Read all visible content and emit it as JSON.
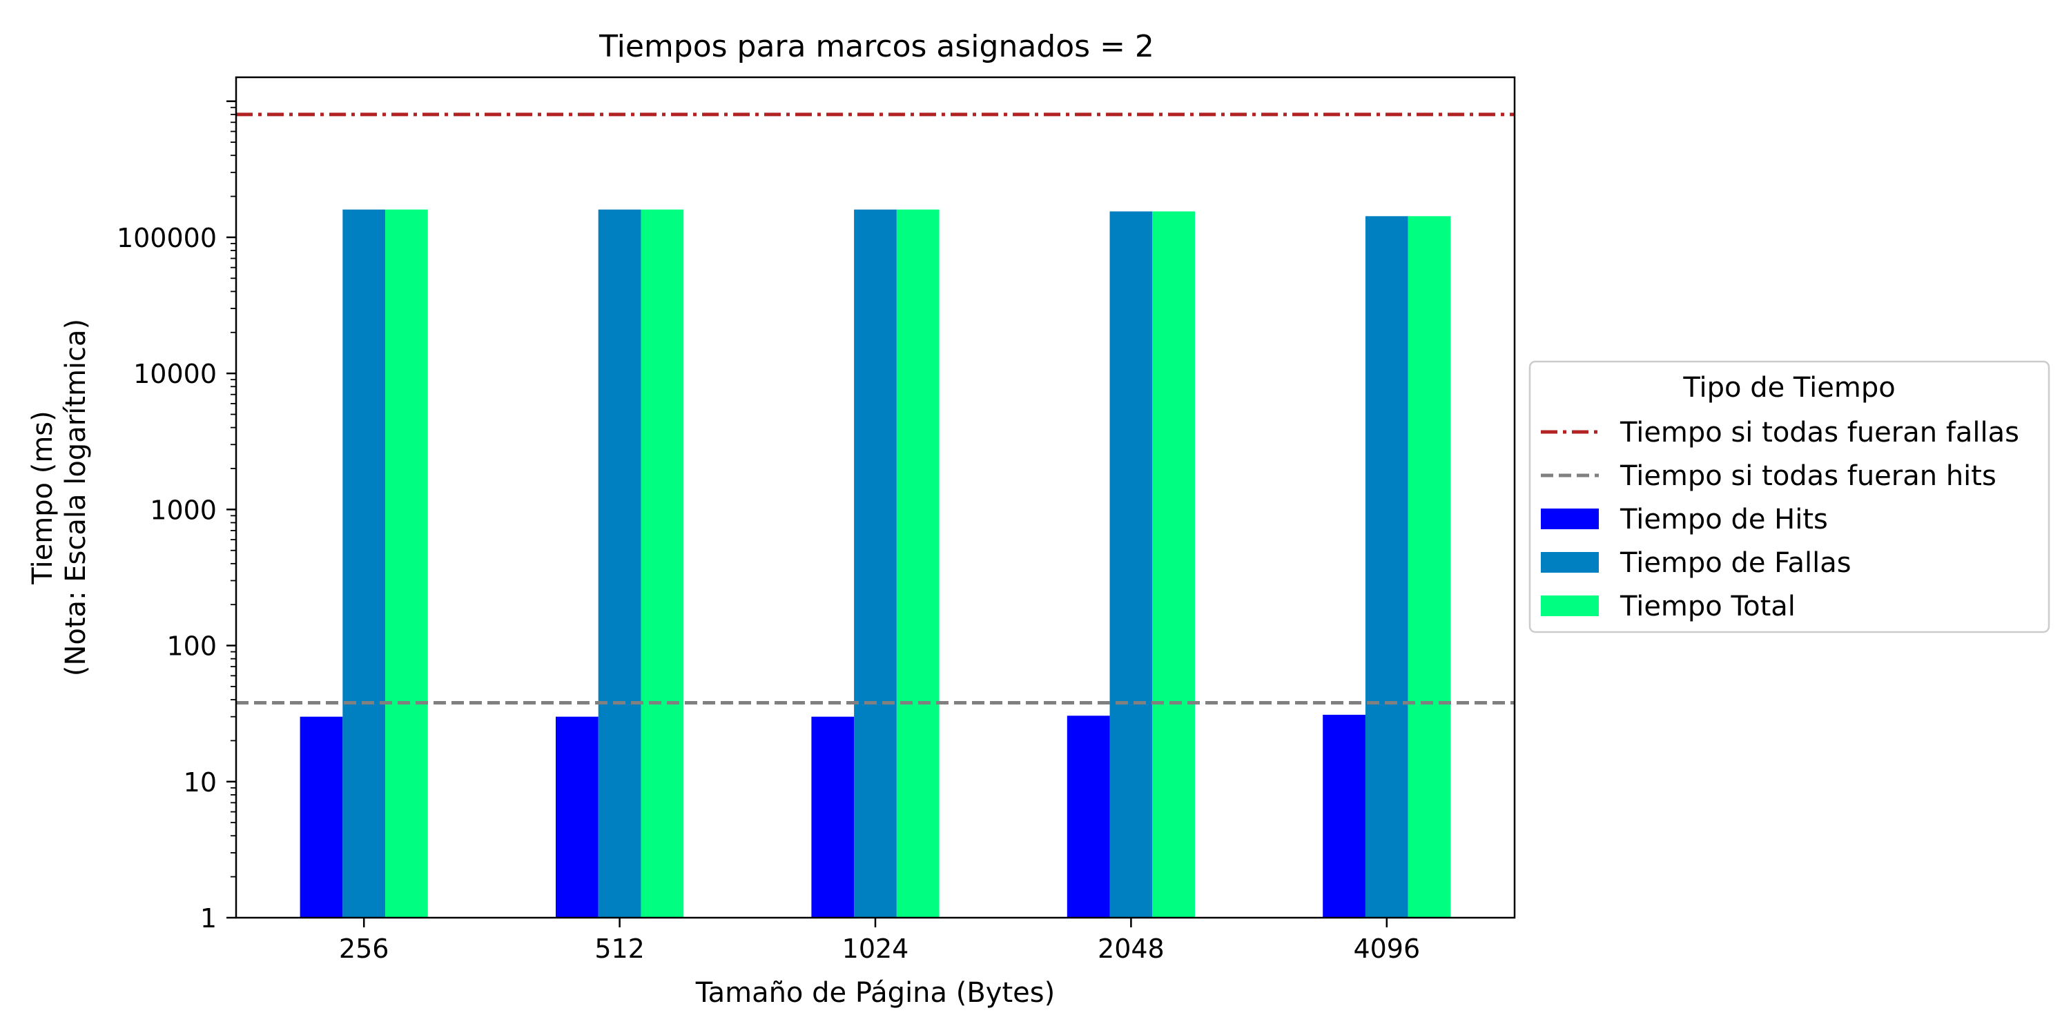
{
  "chart_data": {
    "type": "bar",
    "title": "Tiempos para marcos asignados = 2",
    "xlabel": "Tamaño de Página (Bytes)",
    "ylabel_line1": "Tiempo (ms)",
    "ylabel_line2": "(Nota: Escala logarítmica)",
    "yscale": "log",
    "ylim": [
      1,
      1500000
    ],
    "yticks": [
      {
        "value": 1,
        "label": "1"
      },
      {
        "value": 10,
        "label": "10"
      },
      {
        "value": 100,
        "label": "100"
      },
      {
        "value": 1000,
        "label": "1000"
      },
      {
        "value": 10000,
        "label": "10000"
      },
      {
        "value": 100000,
        "label": "100000"
      }
    ],
    "categories": [
      "256",
      "512",
      "1024",
      "2048",
      "4096"
    ],
    "series": [
      {
        "name": "Tiempo de Hits",
        "color": "#0000ff",
        "values": [
          30,
          30,
          30,
          30.5,
          31
        ]
      },
      {
        "name": "Tiempo de Fallas",
        "color": "#0080c0",
        "values": [
          160000,
          160000,
          160000,
          155000,
          143000
        ]
      },
      {
        "name": "Tiempo Total",
        "color": "#00ff80",
        "values": [
          160030,
          160030,
          160030,
          155030,
          143031
        ]
      }
    ],
    "reference_lines": [
      {
        "name": "Tiempo si todas fueran fallas",
        "value": 800000,
        "color": "#b22222",
        "style": "dashdot"
      },
      {
        "name": "Tiempo si todas fueran hits",
        "value": 38,
        "color": "#808080",
        "style": "dashed"
      }
    ],
    "legend": {
      "title": "Tipo de Tiempo",
      "position": "right"
    },
    "grid": false
  }
}
